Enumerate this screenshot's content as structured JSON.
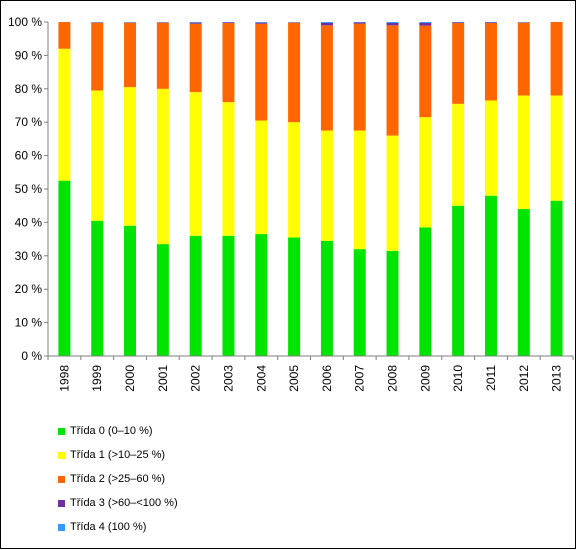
{
  "chart_data": {
    "type": "bar",
    "stacked": true,
    "percent": true,
    "categories": [
      "1998",
      "1999",
      "2000",
      "2001",
      "2002",
      "2003",
      "2004",
      "2005",
      "2006",
      "2007",
      "2008",
      "2009",
      "2010",
      "2011",
      "2012",
      "2013"
    ],
    "series": [
      {
        "name": "Třída 0 (0–10 %)",
        "color": "#00e400",
        "values": [
          52.5,
          40.5,
          39,
          33.5,
          36,
          36,
          36.5,
          35.5,
          34.5,
          32,
          31.5,
          38.5,
          45,
          48,
          44,
          46.5
        ]
      },
      {
        "name": "Třída 1 (>10–25 %)",
        "color": "#ffff00",
        "values": [
          39.5,
          39,
          41.5,
          46.5,
          43,
          40,
          34,
          34.5,
          33,
          35.5,
          34.5,
          33,
          30.5,
          28.5,
          34,
          31.5
        ]
      },
      {
        "name": "Třída 2 (>25–60 %)",
        "color": "#ff6600",
        "values": [
          8,
          20.3,
          19.3,
          19.8,
          20.5,
          23.7,
          29,
          29.8,
          31.5,
          32,
          33,
          27.4,
          24.2,
          23.2,
          21.8,
          22
        ]
      },
      {
        "name": "Třída 3 (>60–<100 %)",
        "color": "#7030a0",
        "values": [
          0,
          0.1,
          0.1,
          0.1,
          0.3,
          0.2,
          0.3,
          0.1,
          0.7,
          0.4,
          0.7,
          0.8,
          0.2,
          0.2,
          0.1,
          0
        ]
      },
      {
        "name": "Třída 4 (100 %)",
        "color": "#3399ff",
        "values": [
          0,
          0.1,
          0.1,
          0.1,
          0.2,
          0.1,
          0.2,
          0.1,
          0.3,
          0.1,
          0.3,
          0.3,
          0.1,
          0.1,
          0.1,
          0
        ]
      }
    ],
    "yticks": [
      "0 %",
      "10 %",
      "20 %",
      "30 %",
      "40 %",
      "50 %",
      "60 %",
      "70 %",
      "80 %",
      "90 %",
      "100 %"
    ],
    "ylim": [
      0,
      100
    ],
    "grid": false,
    "legend_position": "bottom-left"
  }
}
